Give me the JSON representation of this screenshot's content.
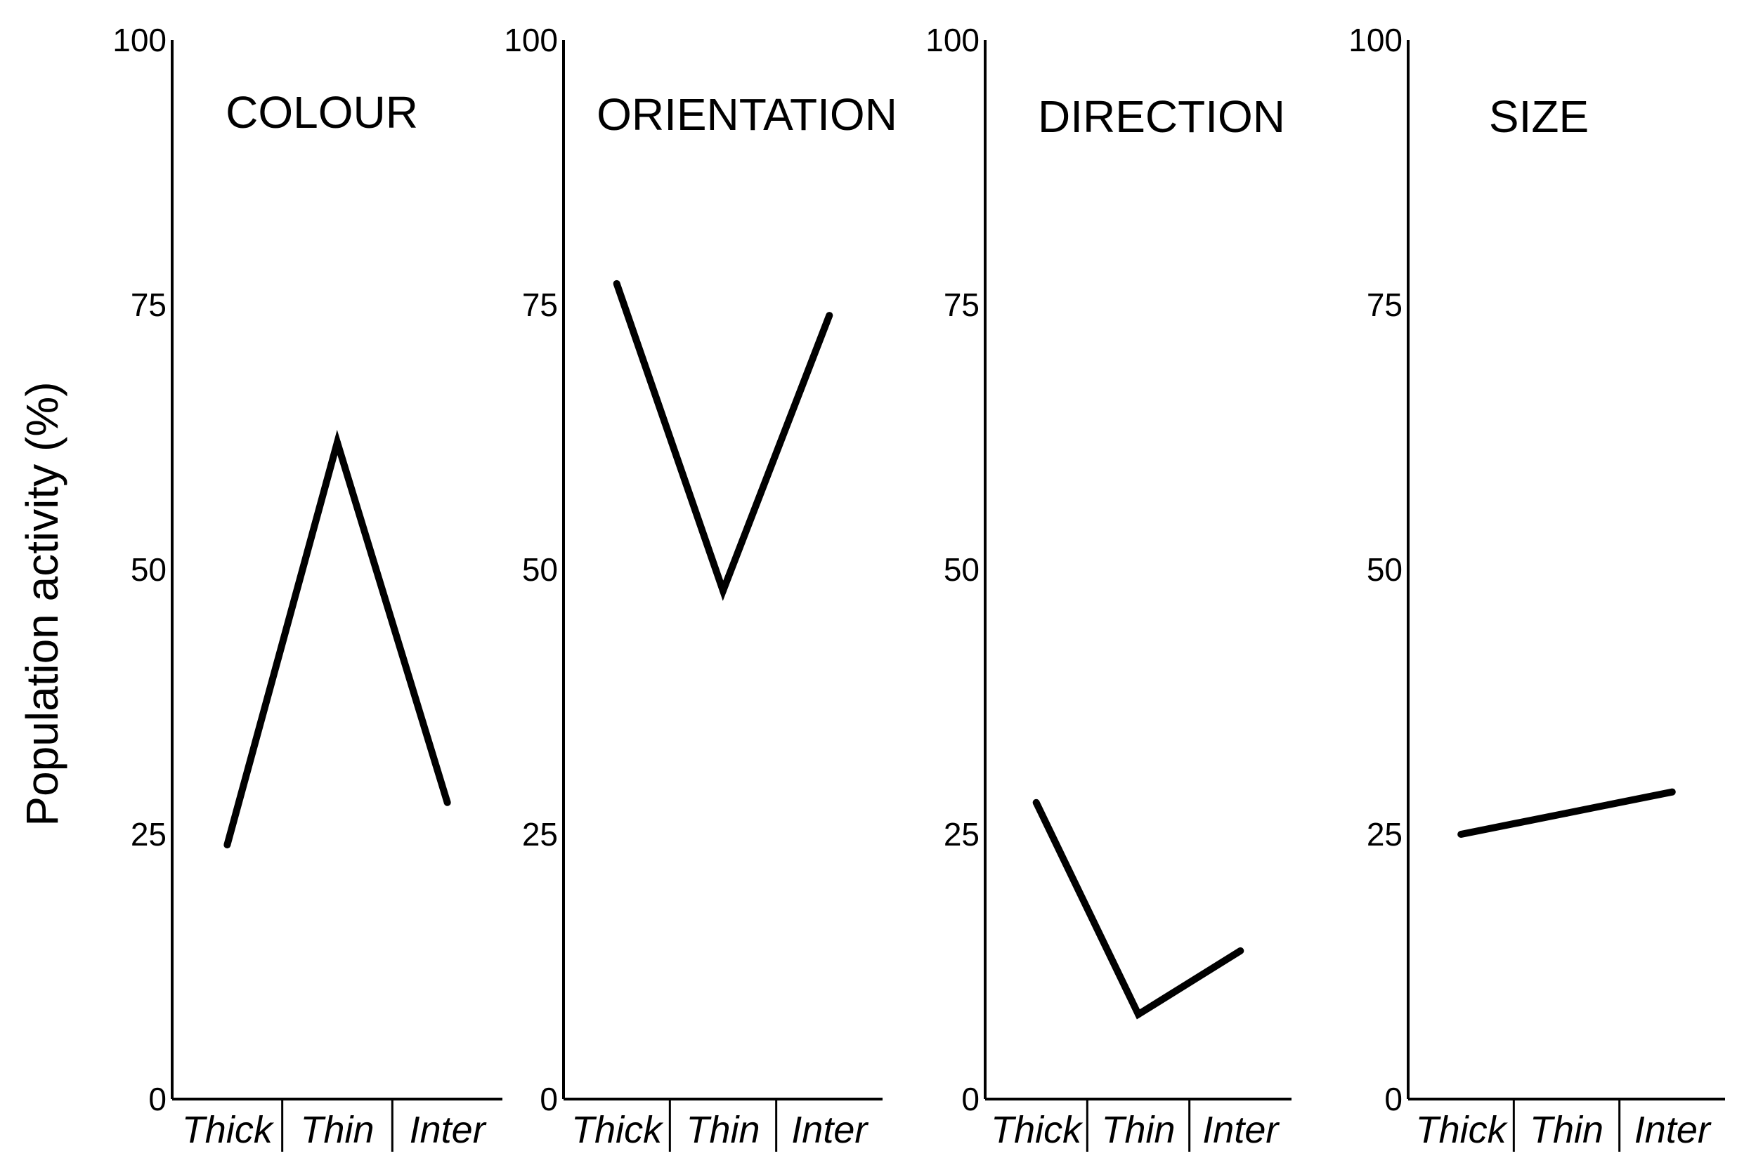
{
  "ylabel": "Population activity (%)",
  "colors": {
    "line": "#000000",
    "axis": "#000000",
    "background": "#ffffff"
  },
  "chart_data": [
    {
      "type": "line",
      "title": "COLOUR",
      "categories": [
        "Thick",
        "Thin",
        "Inter"
      ],
      "values": [
        24,
        62,
        28
      ],
      "ylim": [
        0,
        100
      ],
      "yticks": [
        "0",
        "25",
        "50",
        "75",
        "100"
      ],
      "grid": false
    },
    {
      "type": "line",
      "title": "ORIENTATION",
      "categories": [
        "Thick",
        "Thin",
        "Inter"
      ],
      "values": [
        77,
        48,
        74
      ],
      "ylim": [
        0,
        100
      ],
      "yticks": [
        "0",
        "25",
        "50",
        "75",
        "100"
      ],
      "grid": false
    },
    {
      "type": "line",
      "title": "DIRECTION",
      "categories": [
        "Thick",
        "Thin",
        "Inter"
      ],
      "values": [
        28,
        8,
        14
      ],
      "ylim": [
        0,
        100
      ],
      "yticks": [
        "0",
        "25",
        "50",
        "75",
        "100"
      ],
      "grid": false
    },
    {
      "type": "line",
      "title": "SIZE",
      "categories": [
        "Thick",
        "Thin",
        "Inter"
      ],
      "values": [
        25,
        27,
        29
      ],
      "ylim": [
        0,
        100
      ],
      "yticks": [
        "0",
        "25",
        "50",
        "75",
        "100"
      ],
      "grid": false
    }
  ]
}
